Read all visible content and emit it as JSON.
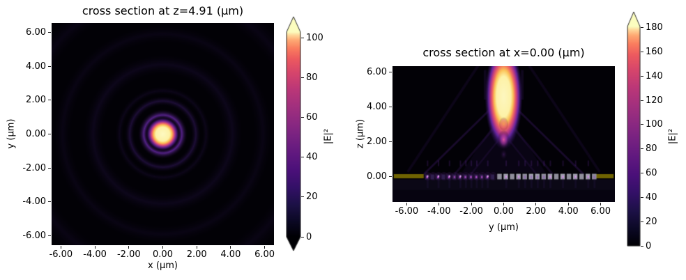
{
  "page": {
    "background": "#ffffff"
  },
  "colormap": "magma",
  "colormap_stops": [
    [
      0.0,
      "#000004"
    ],
    [
      0.08,
      "#0c0926"
    ],
    [
      0.16,
      "#1d1147"
    ],
    [
      0.24,
      "#331067"
    ],
    [
      0.32,
      "#4a1079"
    ],
    [
      0.4,
      "#5f187f"
    ],
    [
      0.48,
      "#752181"
    ],
    [
      0.56,
      "#8c2981"
    ],
    [
      0.64,
      "#a3307e"
    ],
    [
      0.72,
      "#bb3778"
    ],
    [
      0.8,
      "#d6456c"
    ],
    [
      0.87,
      "#ed5a5f"
    ],
    [
      0.92,
      "#fa7d5e"
    ],
    [
      0.96,
      "#fea973"
    ],
    [
      0.985,
      "#fed89b"
    ],
    [
      1.0,
      "#fcfdbf"
    ]
  ],
  "chart_data": [
    {
      "type": "heatmap",
      "title": "cross section at z=4.91 (μm)",
      "xlabel": "x (μm)",
      "ylabel": "y (μm)",
      "x_ticks": {
        "values": [
          -6,
          -4,
          -2,
          0,
          2,
          4,
          6
        ],
        "labels": [
          "-6.00",
          "-4.00",
          "-2.00",
          "0.00",
          "2.00",
          "4.00",
          "6.00"
        ]
      },
      "y_ticks": {
        "values": [
          6,
          4,
          2,
          0,
          -2,
          -4,
          -6
        ],
        "labels": [
          "6.00",
          "4.00",
          "2.00",
          "0.00",
          "-2.00",
          "-4.00",
          "-6.00"
        ]
      },
      "extent": {
        "xmin": -6.55,
        "xmax": 6.55,
        "ymin": -6.55,
        "ymax": 6.55
      },
      "colorbar": {
        "label": "|E|²",
        "vmin": 0,
        "vmax": 103,
        "extend": "both",
        "ticks": {
          "values": [
            0,
            20,
            40,
            60,
            80,
            100
          ],
          "labels": [
            "0",
            "20",
            "40",
            "60",
            "80",
            "100"
          ]
        }
      },
      "field": {
        "description": "focused Airy-like spot at origin",
        "peak": {
          "x_um": 0.0,
          "y_um": 0.0,
          "exceeds_scale": true
        },
        "core_radius_um": 0.55,
        "first_ring_radius_um": 1.12,
        "faint_ring_radii_um": [
          1.95,
          2.55,
          4.1,
          5.9,
          8.2
        ]
      }
    },
    {
      "type": "heatmap",
      "title": "cross section at x=0.00 (μm)",
      "xlabel": "y (μm)",
      "ylabel": "z (μm)",
      "x_ticks": {
        "values": [
          -6,
          -4,
          -2,
          0,
          2,
          4,
          6
        ],
        "labels": [
          "-6.00",
          "-4.00",
          "-2.00",
          "0.00",
          "2.00",
          "4.00",
          "6.00"
        ]
      },
      "y_ticks": {
        "values": [
          6,
          4,
          2,
          0
        ],
        "labels": [
          "6.00",
          "4.00",
          "2.00",
          "0.00"
        ]
      },
      "extent": {
        "xmin": -6.88,
        "xmax": 6.88,
        "ymin": -1.48,
        "ymax": 6.32
      },
      "colorbar": {
        "label": "|E|²",
        "vmin": 0,
        "vmax": 181,
        "extend": "max",
        "ticks": {
          "values": [
            0,
            20,
            40,
            60,
            80,
            100,
            120,
            140,
            160,
            180
          ],
          "labels": [
            "0",
            "20",
            "40",
            "60",
            "80",
            "100",
            "120",
            "140",
            "160",
            "180"
          ]
        }
      },
      "field": {
        "description": "beam focused above a metalens located at z=0",
        "focus": {
          "y_um": 0.0,
          "z_min_um": 3.4,
          "z_max_um": 5.75,
          "width_um": 0.9,
          "exceeds_scale": true
        },
        "secondary_lobe": {
          "y_um": 0.0,
          "z_um": 2.1
        },
        "tail_lobe": {
          "y_um": 0.0,
          "z_um": 3.0
        },
        "metasurface": {
          "z_um": 0,
          "gold_bars_y_um": [
            [
              -6.8,
              -4.95
            ],
            [
              5.55,
              6.8
            ]
          ],
          "pillars_left": {
            "y_start_um": -4.85,
            "y_end_um": -0.45,
            "count": 13
          },
          "pillars_right": {
            "y_start_um": -0.4,
            "y_end_um": 5.85,
            "count": 16
          }
        }
      }
    }
  ]
}
